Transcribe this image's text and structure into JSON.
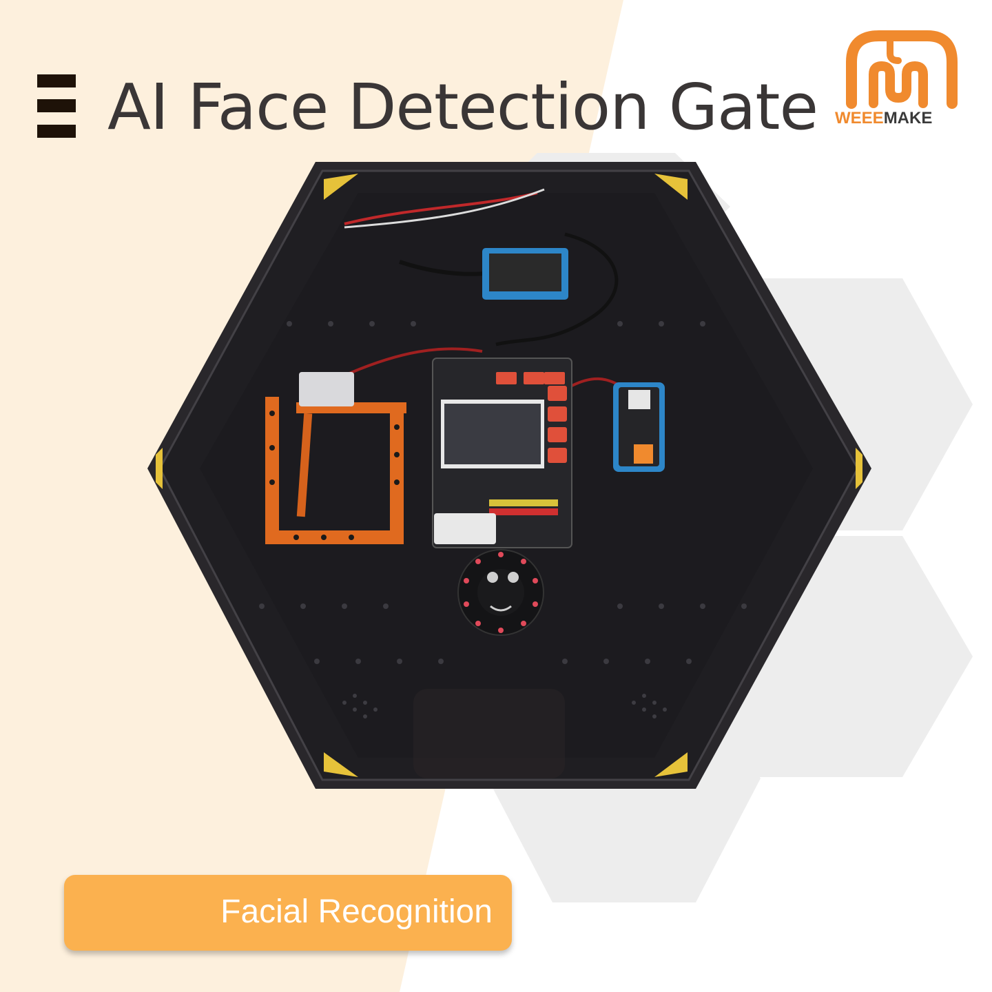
{
  "header": {
    "title": "AI Face Detection Gate",
    "menu_icon": "menu-icon"
  },
  "brand": {
    "logo_icon": "elephant-logo-icon",
    "name_part1": "WEEE",
    "name_part2": "MAKE",
    "color_orange": "#f08a2e",
    "color_dark": "#3a3a3a"
  },
  "product": {
    "image": "hexagonal-gate-kit-photo",
    "modules": [
      "servo-gate-arm",
      "controller-board-with-lcd",
      "dc-power-module",
      "adapter-module",
      "rgb-led-ring"
    ]
  },
  "feature_badge": {
    "label": "Facial Recognition",
    "color": "#fbb14f"
  },
  "colors": {
    "background_peach": "#fdf0dd",
    "hex_gray": "#ededed",
    "title_color": "#3a3636"
  }
}
